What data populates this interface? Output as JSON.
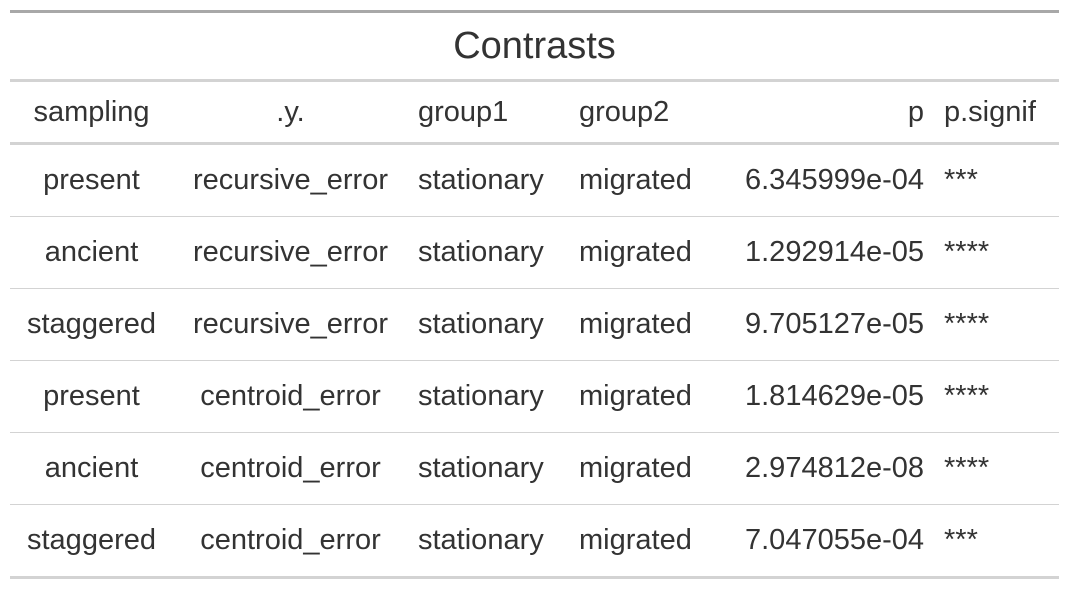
{
  "table": {
    "title": "Contrasts",
    "headers": {
      "sampling": "sampling",
      "y": ".y.",
      "group1": "group1",
      "group2": "group2",
      "p": "p",
      "p_signif": "p.signif"
    },
    "rows": [
      {
        "sampling": "present",
        "y": "recursive_error",
        "group1": "stationary",
        "group2": "migrated",
        "p": "6.345999e-04",
        "p_signif": "***"
      },
      {
        "sampling": "ancient",
        "y": "recursive_error",
        "group1": "stationary",
        "group2": "migrated",
        "p": "1.292914e-05",
        "p_signif": "****"
      },
      {
        "sampling": "staggered",
        "y": "recursive_error",
        "group1": "stationary",
        "group2": "migrated",
        "p": "9.705127e-05",
        "p_signif": "****"
      },
      {
        "sampling": "present",
        "y": "centroid_error",
        "group1": "stationary",
        "group2": "migrated",
        "p": "1.814629e-05",
        "p_signif": "****"
      },
      {
        "sampling": "ancient",
        "y": "centroid_error",
        "group1": "stationary",
        "group2": "migrated",
        "p": "2.974812e-08",
        "p_signif": "****"
      },
      {
        "sampling": "staggered",
        "y": "centroid_error",
        "group1": "stationary",
        "group2": "migrated",
        "p": "7.047055e-04",
        "p_signif": "***"
      }
    ]
  },
  "colors": {
    "text": "#333333",
    "top_rule": "#a8a8a8",
    "rule": "#d3d3d3"
  }
}
